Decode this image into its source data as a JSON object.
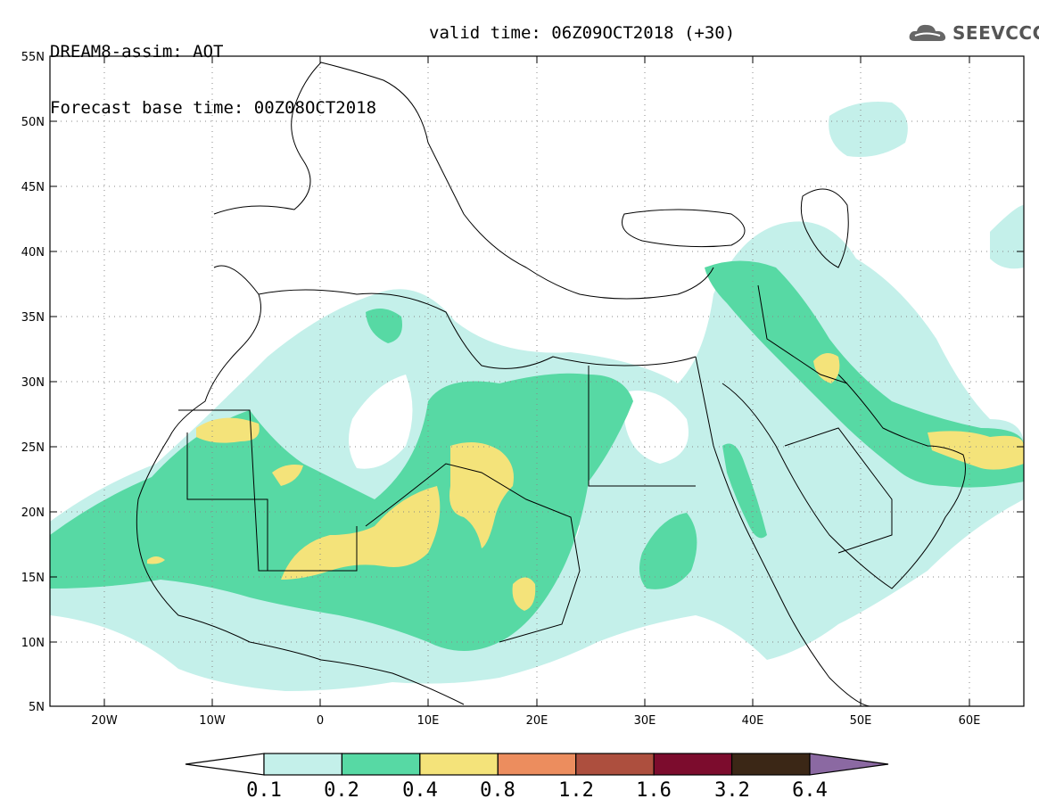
{
  "header": {
    "model_line": "DREAM8-assim: AOT",
    "base_time": "Forecast base time: 00Z08OCT2018",
    "valid_time": "valid time: 06Z09OCT2018 (+30)"
  },
  "logo": {
    "text": "SEEVCCC",
    "icon": "cloud-icon"
  },
  "map": {
    "lat_labels": [
      "55N",
      "50N",
      "45N",
      "40N",
      "35N",
      "30N",
      "25N",
      "20N",
      "15N",
      "10N",
      "5N"
    ],
    "lon_labels": [
      "20W",
      "10W",
      "0",
      "10E",
      "20E",
      "30E",
      "40E",
      "50E",
      "60E"
    ],
    "extent": {
      "lon": [
        -25,
        65
      ],
      "lat": [
        5,
        55
      ]
    },
    "gridlines": "dotted"
  },
  "legend": {
    "variable": "AOT",
    "bins": [
      {
        "label": "0.1",
        "color": "#c4f0ea"
      },
      {
        "label": "0.2",
        "color": "#57d9a4"
      },
      {
        "label": "0.4",
        "color": "#f4e37a"
      },
      {
        "label": "0.8",
        "color": "#ec8d5e"
      },
      {
        "label": "1.2",
        "color": "#ad4f3e"
      },
      {
        "label": "1.6",
        "color": "#7c0c2d"
      },
      {
        "label": "3.2",
        "color": "#3b2716"
      },
      {
        "label": "6.4",
        "color": "#8b69a2"
      }
    ],
    "under_color": "#ffffff"
  }
}
